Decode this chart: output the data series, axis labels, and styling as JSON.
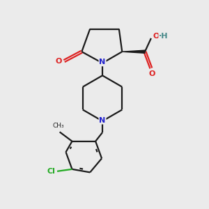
{
  "bg_color": "#ebebeb",
  "bond_color": "#1a1a1a",
  "N_color": "#2222cc",
  "O_color": "#dd2222",
  "Cl_color": "#22aa22",
  "bond_width": 1.6,
  "figsize": [
    3.0,
    3.0
  ],
  "dpi": 100,
  "xlim": [
    0,
    10
  ],
  "ylim": [
    0,
    10
  ]
}
